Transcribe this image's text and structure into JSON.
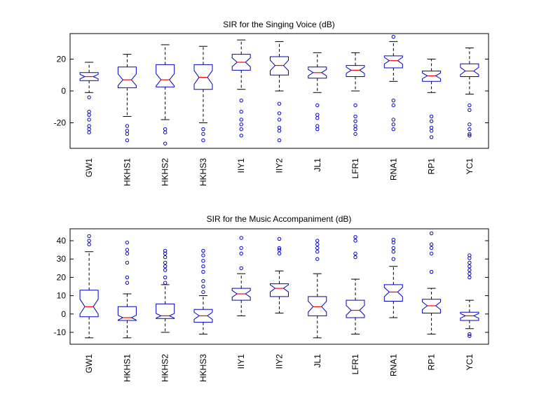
{
  "chart_data": [
    {
      "type": "boxplot",
      "title": "SIR for the Singing Voice (dB)",
      "categories": [
        "GW1",
        "HKHS1",
        "HKHS2",
        "HKHS3",
        "IIY1",
        "IIY2",
        "JL1",
        "LFR1",
        "RNA1",
        "RP1",
        "YC1"
      ],
      "ylim": [
        -36,
        36
      ],
      "yticks": [
        -20,
        0,
        20
      ],
      "ytick_labels": [
        "-20",
        "0",
        "20"
      ],
      "colors": {
        "box": "#0000cc",
        "median": "#ff0000",
        "outlier": "#0000cc"
      },
      "boxes": [
        {
          "q1": 6.5,
          "median": 9,
          "q3": 11.5,
          "whisker_low": -1,
          "whisker_high": 18,
          "outliers": [
            -4,
            -13,
            -15,
            -18,
            -22,
            -24,
            -26
          ]
        },
        {
          "q1": 2,
          "median": 7,
          "q3": 15,
          "whisker_low": -16,
          "whisker_high": 23,
          "outliers": [
            -22,
            -25,
            -27,
            -31
          ]
        },
        {
          "q1": 2.5,
          "median": 7,
          "q3": 16.5,
          "whisker_low": -18,
          "whisker_high": 29,
          "outliers": [
            -24,
            -26,
            -33
          ]
        },
        {
          "q1": 1,
          "median": 8.5,
          "q3": 16.5,
          "whisker_low": -20,
          "whisker_high": 28,
          "outliers": [
            -24,
            -27,
            -31
          ]
        },
        {
          "q1": 13,
          "median": 18,
          "q3": 23,
          "whisker_low": 1,
          "whisker_high": 32,
          "outliers": [
            -6,
            -13,
            -18,
            -21,
            -24,
            -28
          ]
        },
        {
          "q1": 10,
          "median": 16,
          "q3": 21.5,
          "whisker_low": 0,
          "whisker_high": 31,
          "outliers": [
            -8,
            -14,
            -18,
            -23,
            -25,
            -31
          ]
        },
        {
          "q1": 8,
          "median": 11.5,
          "q3": 15,
          "whisker_low": -1,
          "whisker_high": 24,
          "outliers": [
            -9,
            -15,
            -17,
            -22,
            -24
          ]
        },
        {
          "q1": 9,
          "median": 13,
          "q3": 16,
          "whisker_low": 0,
          "whisker_high": 24,
          "outliers": [
            -9,
            -16,
            -19,
            -22,
            -24,
            -27
          ]
        },
        {
          "q1": 14.5,
          "median": 19,
          "q3": 22,
          "whisker_low": 6,
          "whisker_high": 31,
          "outliers": [
            34,
            -6,
            -9,
            -18,
            -21,
            -24
          ]
        },
        {
          "q1": 6,
          "median": 9.5,
          "q3": 12.5,
          "whisker_low": -1,
          "whisker_high": 20,
          "outliers": [
            -16,
            -19,
            -23,
            -25,
            -29
          ]
        },
        {
          "q1": 9,
          "median": 12.5,
          "q3": 17,
          "whisker_low": -2,
          "whisker_high": 27,
          "outliers": [
            -9,
            -12,
            -21,
            -24,
            -27,
            -28
          ]
        }
      ]
    },
    {
      "type": "boxplot",
      "title": "SIR for the Music Accompaniment (dB)",
      "categories": [
        "GW1",
        "HKHS1",
        "HKHS2",
        "HKHS3",
        "IIY1",
        "IIY2",
        "JL1",
        "LFR1",
        "RNA1",
        "RP1",
        "YC1"
      ],
      "ylim": [
        -16.5,
        46.5
      ],
      "yticks": [
        -10,
        0,
        10,
        20,
        30,
        40
      ],
      "ytick_labels": [
        "-10",
        "0",
        "10",
        "20",
        "30",
        "40"
      ],
      "colors": {
        "box": "#0000cc",
        "median": "#ff0000",
        "outlier": "#0000cc"
      },
      "boxes": [
        {
          "q1": -1.5,
          "median": 4,
          "q3": 13,
          "whisker_low": -13,
          "whisker_high": 34,
          "outliers": [
            38,
            40,
            42.5
          ]
        },
        {
          "q1": -3.5,
          "median": -2,
          "q3": 4,
          "whisker_low": -13,
          "whisker_high": 11,
          "outliers": [
            17,
            20,
            28,
            33,
            35,
            39
          ]
        },
        {
          "q1": -2.5,
          "median": -1,
          "q3": 5.5,
          "whisker_low": -10,
          "whisker_high": 16,
          "outliers": [
            17,
            20,
            24,
            26,
            28,
            31,
            33,
            34.5
          ]
        },
        {
          "q1": -4.5,
          "median": -1,
          "q3": 2.5,
          "whisker_low": -11,
          "whisker_high": 10,
          "outliers": [
            12,
            15,
            18,
            23,
            26,
            29,
            32,
            34.5
          ]
        },
        {
          "q1": 7.5,
          "median": 11,
          "q3": 14,
          "whisker_low": -1,
          "whisker_high": 22,
          "outliers": [
            25,
            33,
            36,
            41.5
          ]
        },
        {
          "q1": 9.5,
          "median": 14,
          "q3": 16.5,
          "whisker_low": 0.5,
          "whisker_high": 23.5,
          "outliers": [
            33,
            35,
            36,
            41
          ]
        },
        {
          "q1": -1,
          "median": 4,
          "q3": 9.5,
          "whisker_low": -13,
          "whisker_high": 22,
          "outliers": [
            30,
            34,
            36,
            38,
            40
          ]
        },
        {
          "q1": -2,
          "median": 2,
          "q3": 7.5,
          "whisker_low": -11,
          "whisker_high": 19,
          "outliers": [
            31,
            33,
            40,
            42
          ]
        },
        {
          "q1": 7,
          "median": 12,
          "q3": 16,
          "whisker_low": -2,
          "whisker_high": 26,
          "outliers": [
            30,
            34,
            36,
            39,
            40.5
          ]
        },
        {
          "q1": 0.5,
          "median": 4.5,
          "q3": 8,
          "whisker_low": -11,
          "whisker_high": 14,
          "outliers": [
            23,
            33,
            36,
            38,
            44
          ]
        },
        {
          "q1": -3.5,
          "median": -1,
          "q3": 1,
          "whisker_low": -8,
          "whisker_high": 7.5,
          "outliers": [
            -11,
            -12,
            20,
            22,
            24,
            26,
            28,
            30.5,
            32
          ]
        }
      ]
    }
  ]
}
